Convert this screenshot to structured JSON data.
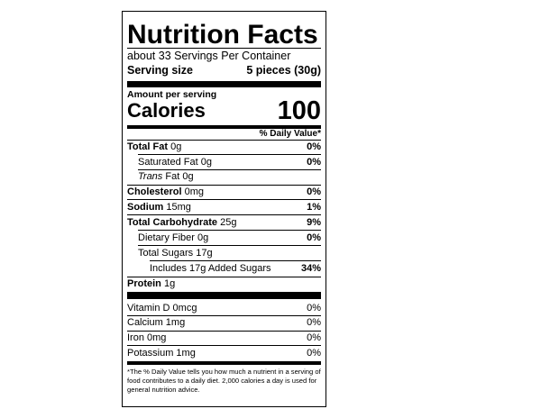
{
  "title": "Nutrition Facts",
  "servings": "about 33 Servings Per Container",
  "serving_size": {
    "label": "Serving size",
    "value": "5 pieces (30g)"
  },
  "amount_per_serving": "Amount per serving",
  "calories": {
    "label": "Calories",
    "value": "100"
  },
  "daily_value_header": "% Daily Value*",
  "nutrients": [
    {
      "name": "Total Fat",
      "amount": "0g",
      "dv": "0%"
    },
    {
      "name": "Saturated Fat",
      "amount": "0g",
      "dv": "0%"
    },
    {
      "name_italic": "Trans",
      "name": "Fat",
      "amount": "0g"
    },
    {
      "name": "Cholesterol",
      "amount": "0mg",
      "dv": "0%"
    },
    {
      "name": "Sodium",
      "amount": "15mg",
      "dv": "1%"
    },
    {
      "name": "Total Carbohydrate",
      "amount": "25g",
      "dv": "9%"
    },
    {
      "name": "Dietary Fiber",
      "amount": "0g",
      "dv": "0%"
    },
    {
      "name": "Total Sugars",
      "amount": "17g"
    },
    {
      "name": "Includes 17g Added Sugars",
      "dv": "34%"
    },
    {
      "name": "Protein",
      "amount": "1g"
    }
  ],
  "vitamins": [
    {
      "name": "Vitamin D",
      "amount": "0mcg",
      "dv": "0%"
    },
    {
      "name": "Calcium",
      "amount": "1mg",
      "dv": "0%"
    },
    {
      "name": "Iron",
      "amount": "0mg",
      "dv": "0%"
    },
    {
      "name": "Potassium",
      "amount": "1mg",
      "dv": "0%"
    }
  ],
  "footnote": "*The % Daily Value tells you how much a nutrient in a serving of food contributes to a daily diet. 2,000 calories a day is used for general nutrition advice."
}
